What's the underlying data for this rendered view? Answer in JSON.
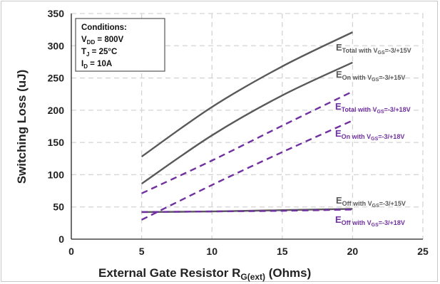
{
  "chart_data": {
    "type": "line",
    "xlabel": "External Gate Resistor R",
    "xlabel_sub": "G(ext)",
    "xlabel_suffix": " (Ohms)",
    "ylabel": "Switching Loss (uJ)",
    "xlim": [
      0,
      25
    ],
    "ylim": [
      0,
      350
    ],
    "xticks": [
      0,
      5,
      10,
      15,
      20,
      25
    ],
    "yticks": [
      0,
      50,
      100,
      150,
      200,
      250,
      300,
      350
    ],
    "grid": true,
    "conditions": {
      "title": "Conditions:",
      "lines": [
        {
          "main": "V",
          "sub": "DD",
          "rest": " = 800V"
        },
        {
          "main": "T",
          "sub": "J",
          "rest": " = 25°C"
        },
        {
          "main": "I",
          "sub": "D",
          "rest": " = 10A"
        }
      ]
    },
    "colors": {
      "vgs15": "#595959",
      "vgs18": "#7030a0"
    },
    "series": [
      {
        "id": "total15",
        "label_main": "E",
        "label_sub": "Total with V",
        "label_sub2": "GS",
        "label_sub3": "=-3/+15V",
        "color": "#595959",
        "dash": false,
        "x": [
          5,
          10,
          15,
          20
        ],
        "y": [
          128,
          205,
          268,
          321
        ]
      },
      {
        "id": "on15",
        "label_main": "E",
        "label_sub": "On with V",
        "label_sub2": "GS",
        "label_sub3": "=-3/+15V",
        "color": "#595959",
        "dash": false,
        "x": [
          5,
          10,
          15,
          20
        ],
        "y": [
          86,
          161,
          223,
          274
        ]
      },
      {
        "id": "total18",
        "label_main": "E",
        "label_sub": "Total with V",
        "label_sub2": "GS",
        "label_sub3": "=-3/+18V",
        "color": "#7030a0",
        "dash": true,
        "x": [
          5,
          10,
          15,
          20
        ],
        "y": [
          71,
          122,
          176,
          229
        ]
      },
      {
        "id": "on18",
        "label_main": "E",
        "label_sub": "On with V",
        "label_sub2": "GS",
        "label_sub3": "=-3/+18V",
        "color": "#7030a0",
        "dash": true,
        "x": [
          5,
          10,
          15,
          20
        ],
        "y": [
          30,
          84,
          135,
          184
        ]
      },
      {
        "id": "off15",
        "label_main": "E",
        "label_sub": "Off with V",
        "label_sub2": "GS",
        "label_sub3": "=-3/+15V",
        "color": "#595959",
        "dash": false,
        "x": [
          5,
          10,
          15,
          20
        ],
        "y": [
          42,
          43,
          45,
          47
        ]
      },
      {
        "id": "off18",
        "label_main": "E",
        "label_sub": "Off with V",
        "label_sub2": "GS",
        "label_sub3": "=-3/+18V",
        "color": "#7030a0",
        "dash": true,
        "x": [
          5,
          10,
          15,
          20
        ],
        "y": [
          42,
          43,
          44,
          46
        ]
      }
    ]
  }
}
